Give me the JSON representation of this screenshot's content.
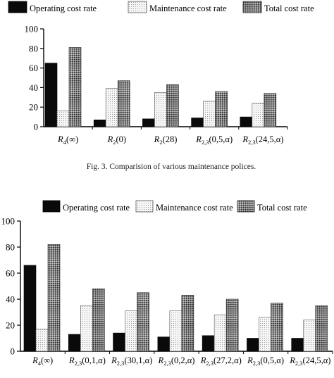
{
  "caption": "Fig. 3. Comparision of various maintenance polices.",
  "legend": [
    "Operating cost rate",
    "Maintenance cost rate",
    "Total cost rate"
  ],
  "colors": {
    "operating": "#0a0a0a",
    "maintenance": "#efefef",
    "total": "#7a7a7a"
  },
  "chart_data": [
    {
      "type": "bar",
      "title": "",
      "xlabel": "",
      "ylabel": "",
      "ylim": [
        0,
        100
      ],
      "yticks": [
        "0",
        "20",
        "40",
        "60",
        "80",
        "100"
      ],
      "legend_position": "top",
      "grid": false,
      "categories": [
        {
          "sym": "R",
          "sub": "4",
          "arg": "(∞)"
        },
        {
          "sym": "R",
          "sub": "2",
          "arg": "(0)"
        },
        {
          "sym": "R",
          "sub": "2",
          "arg": "(28)"
        },
        {
          "sym": "R",
          "sub": "2,3",
          "arg": "(0,5,α)"
        },
        {
          "sym": "R",
          "sub": "2,3",
          "arg": "(24,5,α)"
        }
      ],
      "series": [
        {
          "name": "Operating cost rate",
          "values": [
            65,
            7,
            8,
            9,
            10
          ]
        },
        {
          "name": "Maintenance cost rate",
          "values": [
            16,
            39,
            35,
            26,
            24
          ]
        },
        {
          "name": "Total cost rate",
          "values": [
            81,
            47,
            43,
            36,
            34
          ]
        }
      ]
    },
    {
      "type": "bar",
      "title": "",
      "xlabel": "",
      "ylabel": "",
      "ylim": [
        0,
        100
      ],
      "yticks": [
        "0",
        "20",
        "40",
        "60",
        "80",
        "100"
      ],
      "legend_position": "top",
      "grid": false,
      "categories": [
        {
          "sym": "R",
          "sub": "4",
          "arg": "(∞)"
        },
        {
          "sym": "R",
          "sub": "2,3",
          "arg": "(0,1,α)"
        },
        {
          "sym": "R",
          "sub": "2,3",
          "arg": "(30,1,α)"
        },
        {
          "sym": "R",
          "sub": "2,3",
          "arg": "(0,2,α)"
        },
        {
          "sym": "R",
          "sub": "2,3",
          "arg": "(27,2,α)"
        },
        {
          "sym": "R",
          "sub": "2,3",
          "arg": "(0,5,α)"
        },
        {
          "sym": "R",
          "sub": "2,3",
          "arg": "(24,5,α)"
        }
      ],
      "series": [
        {
          "name": "Operating cost rate",
          "values": [
            66,
            13,
            14,
            11,
            12,
            10,
            10
          ]
        },
        {
          "name": "Maintenance cost rate",
          "values": [
            17,
            35,
            31,
            31,
            28,
            26,
            24
          ]
        },
        {
          "name": "Total cost rate",
          "values": [
            82,
            48,
            45,
            43,
            40,
            37,
            35
          ]
        }
      ]
    }
  ]
}
